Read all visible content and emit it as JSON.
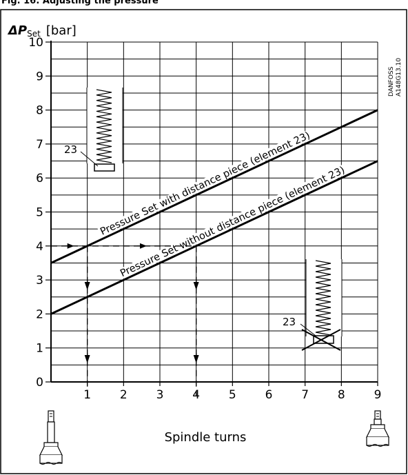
{
  "figure_header": "Fig. 16: Adjusting the pressure",
  "chart_data": {
    "type": "line",
    "title": "",
    "ylabel_prefix": "ΔP",
    "ylabel_sub": "Set",
    "ylabel_unit": "[bar]",
    "xlabel": "Spindle turns",
    "xlim": [
      0,
      9
    ],
    "ylim": [
      0,
      10
    ],
    "x_ticks": [
      1,
      2,
      3,
      4,
      5,
      6,
      7,
      8,
      9
    ],
    "y_ticks": [
      0,
      1,
      2,
      3,
      4,
      5,
      6,
      7,
      8,
      9,
      10
    ],
    "grid": true,
    "series": [
      {
        "name": "Pressure Set with distance piece (element 23)",
        "x": [
          0,
          9
        ],
        "y": [
          3.5,
          8
        ]
      },
      {
        "name": "Pressure Set without distance piece (element 23)",
        "x": [
          0,
          9
        ],
        "y": [
          2,
          6.5
        ]
      }
    ],
    "example_lines": {
      "pressure": 4,
      "turns": [
        1,
        4
      ]
    },
    "annotations": {
      "element_label_1": "23",
      "element_label_2": "23",
      "code": [
        "DANFOSS",
        "A148G13.10"
      ]
    }
  }
}
